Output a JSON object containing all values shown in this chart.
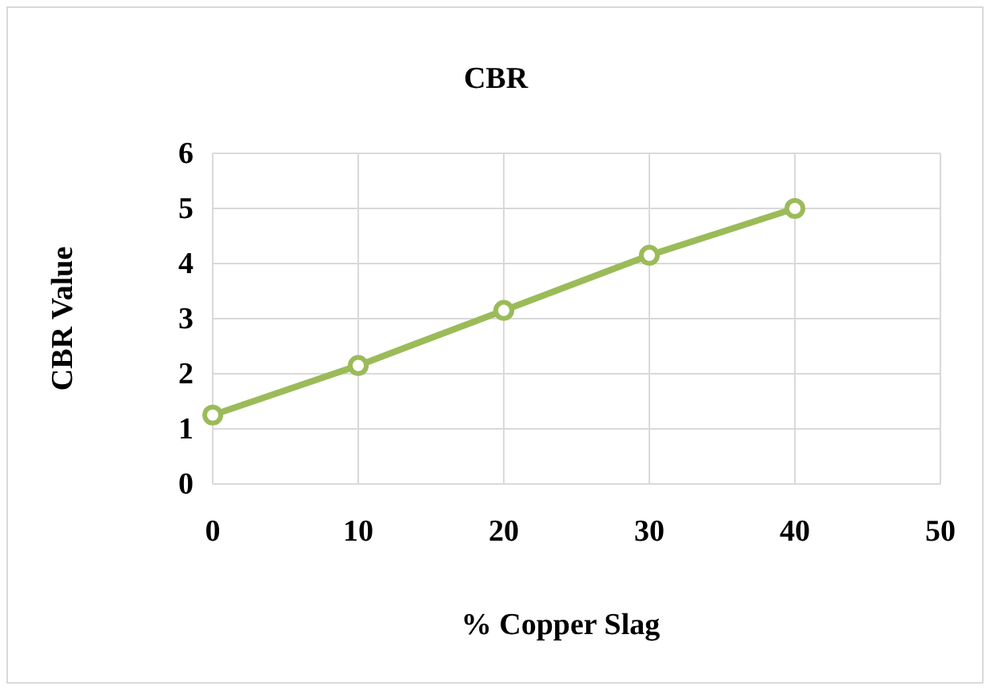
{
  "chart_data": {
    "type": "line",
    "title": "CBR",
    "xlabel": "% Copper Slag",
    "ylabel": "CBR Value",
    "x": [
      0,
      10,
      20,
      30,
      40
    ],
    "series": [
      {
        "color": "#9bbb59",
        "values": [
          1.25,
          2.15,
          3.15,
          4.15,
          5.0
        ]
      }
    ],
    "xlim": [
      0,
      50
    ],
    "xticks": [
      0,
      10,
      20,
      30,
      40,
      50
    ],
    "ylim": [
      0,
      6
    ],
    "yticks": [
      0,
      1,
      2,
      3,
      4,
      5,
      6
    ],
    "grid": true,
    "marker": "circle",
    "line_style": "solid"
  }
}
